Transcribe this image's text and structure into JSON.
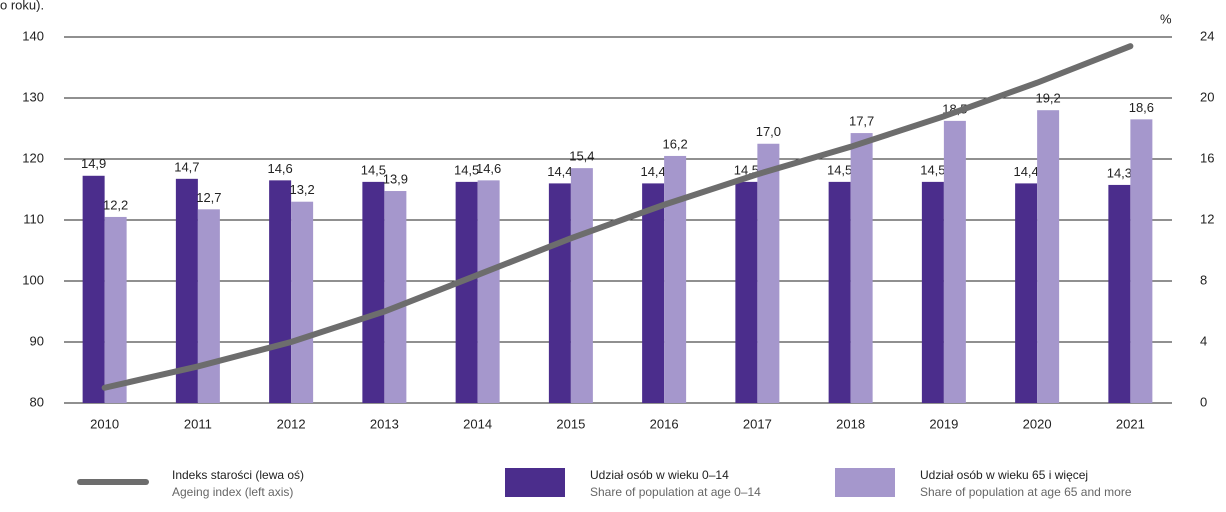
{
  "chart_data": {
    "type": "bar-line",
    "note": "o roku).",
    "y2_label": "%",
    "categories": [
      "2010",
      "2011",
      "2012",
      "2013",
      "2014",
      "2015",
      "2016",
      "2017",
      "2018",
      "2019",
      "2020",
      "2021"
    ],
    "ylim": [
      80,
      140
    ],
    "yticks": [
      80,
      90,
      100,
      110,
      120,
      130,
      140
    ],
    "y2lim": [
      0,
      24
    ],
    "y2ticks": [
      0,
      4,
      8,
      12,
      16,
      20,
      24
    ],
    "grid": true,
    "series": [
      {
        "name": "Indeks starości (lewa oś)",
        "name_en": "Ageing index (left axis)",
        "type": "line",
        "color": "#6d6d6d",
        "values": [
          82.5,
          86,
          90,
          95,
          101,
          107,
          112.5,
          117.5,
          122,
          127,
          132.5,
          138.5
        ]
      },
      {
        "name": "Udział osób w wieku 0–14",
        "name_en": "Share of population at age 0–14",
        "type": "bar",
        "axis": "y2",
        "color": "#4b2d8c",
        "values": [
          14.9,
          14.7,
          14.6,
          14.5,
          14.5,
          14.4,
          14.4,
          14.5,
          14.5,
          14.5,
          14.4,
          14.3
        ],
        "value_labels": [
          "14,9",
          "14,7",
          "14,6",
          "14,5",
          "14,5",
          "14,4",
          "14,4",
          "14,5",
          "14,5",
          "14,5",
          "14,4",
          "14,3"
        ]
      },
      {
        "name": "Udział osób w wieku 65 i więcej",
        "name_en": "Share of population at age 65 and more",
        "type": "bar",
        "axis": "y2",
        "color": "#a597cc",
        "values": [
          12.2,
          12.7,
          13.2,
          13.9,
          14.6,
          15.4,
          16.2,
          17.0,
          17.7,
          18.5,
          19.2,
          18.6
        ],
        "value_labels": [
          "12,2",
          "12,7",
          "13,2",
          "13,9",
          "14,6",
          "15,4",
          "16,2",
          "17,0",
          "17,7",
          "18,5",
          "19,2",
          "18,6"
        ]
      }
    ]
  }
}
